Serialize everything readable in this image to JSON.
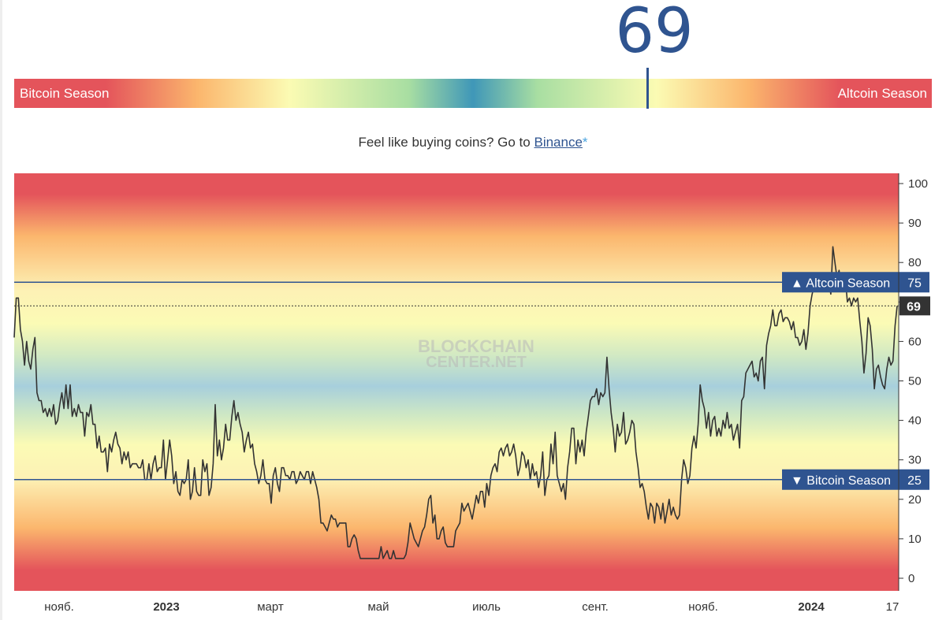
{
  "header": {
    "index_value": "69",
    "bar": {
      "left_label": "Bitcoin Season",
      "right_label": "Altcoin Season",
      "marker_value": 69
    },
    "buy_prompt": "Feel like buying coins? Go to",
    "buy_link": "Binance",
    "buy_star": "*"
  },
  "watermark": {
    "line1": "BLOCKCHAIN",
    "line2": "CENTER.NET"
  },
  "chart_data": {
    "type": "line",
    "ylim": [
      0,
      100
    ],
    "y_ticks": [
      0,
      10,
      20,
      30,
      40,
      50,
      60,
      70,
      80,
      90,
      100
    ],
    "x_ticks": [
      "нояб.",
      "2023",
      "март",
      "май",
      "июль",
      "сент.",
      "нояб.",
      "2024",
      "17"
    ],
    "thresholds": [
      {
        "label": "▲ Altcoin Season",
        "value_label": "75",
        "value": 75
      },
      {
        "label": "▼ Bitcoin Season",
        "value_label": "25",
        "value": 25
      }
    ],
    "current": {
      "label": "69",
      "value": 69
    },
    "series": [
      {
        "values": [
          61,
          71,
          71,
          63,
          60,
          54,
          60,
          55,
          53,
          58,
          61,
          47,
          45,
          45,
          42,
          43,
          41,
          43,
          41,
          44,
          39,
          40,
          44,
          47,
          43,
          49,
          43,
          49,
          41,
          43,
          41,
          44,
          42,
          42,
          36,
          42,
          41,
          44,
          39,
          39,
          33,
          36,
          32,
          32,
          33,
          27,
          34,
          32,
          35,
          37,
          34,
          33,
          29,
          32,
          30,
          32,
          28,
          29,
          29,
          29,
          28,
          28,
          30,
          25,
          25,
          29,
          25,
          29,
          31,
          27,
          28,
          28,
          35,
          25,
          30,
          35,
          31,
          24,
          27,
          22,
          21,
          25,
          24,
          25,
          30,
          20,
          22,
          28,
          22,
          21,
          21,
          30,
          27,
          29,
          21,
          23,
          29,
          44,
          31,
          35,
          30,
          33,
          39,
          35,
          35,
          41,
          45,
          40,
          42,
          39,
          37,
          32,
          35,
          37,
          33,
          34,
          29,
          27,
          24,
          26,
          30,
          25,
          24,
          24,
          19,
          26,
          28,
          24,
          22,
          28,
          28,
          26,
          26,
          25,
          27,
          27,
          24,
          25,
          27,
          26,
          25,
          27,
          27,
          24,
          27,
          25,
          23,
          20,
          14,
          14,
          13,
          12,
          14,
          16,
          15,
          15,
          13,
          14,
          14,
          14,
          14,
          8,
          8,
          10,
          11,
          10,
          7,
          5,
          5,
          5,
          5,
          5,
          5,
          5,
          5,
          5,
          5,
          8,
          5,
          6,
          7,
          5,
          5,
          7,
          5,
          5,
          5,
          5,
          5,
          6,
          9,
          14,
          12,
          10,
          9,
          8,
          10,
          12,
          13,
          16,
          20,
          21,
          14,
          16,
          10,
          10,
          12,
          13,
          9,
          8,
          8,
          8,
          8,
          12,
          13,
          14,
          19,
          17,
          18,
          19,
          17,
          15,
          18,
          21,
          19,
          22,
          22,
          18,
          24,
          21,
          26,
          28,
          29,
          27,
          32,
          33,
          31,
          33,
          34,
          31,
          32,
          34,
          31,
          26,
          28,
          32,
          31,
          28,
          30,
          25,
          29,
          26,
          27,
          23,
          26,
          32,
          21,
          25,
          26,
          34,
          29,
          37,
          26,
          24,
          22,
          24,
          20,
          28,
          32,
          38,
          38,
          29,
          35,
          32,
          35,
          31,
          37,
          41,
          45,
          46,
          46,
          48,
          44,
          47,
          46,
          47,
          56,
          48,
          42,
          38,
          32,
          39,
          36,
          37,
          42,
          34,
          35,
          37,
          40,
          39,
          32,
          28,
          23,
          24,
          22,
          18,
          15,
          19,
          18,
          14,
          19,
          18,
          15,
          19,
          14,
          17,
          20,
          16,
          18,
          16,
          15,
          16,
          25,
          30,
          28,
          24,
          26,
          33,
          36,
          33,
          39,
          49,
          45,
          43,
          38,
          42,
          36,
          40,
          41,
          36,
          38,
          36,
          40,
          38,
          42,
          38,
          39,
          35,
          37,
          39,
          33,
          45,
          46,
          52,
          53,
          54,
          55,
          51,
          52,
          50,
          55,
          56,
          48,
          59,
          62,
          64,
          68,
          64,
          64,
          67,
          68,
          65,
          66,
          66,
          65,
          63,
          65,
          61,
          61,
          59,
          60,
          63,
          58,
          62,
          69,
          72,
          74,
          77,
          75,
          74,
          73,
          76,
          74,
          75,
          72,
          84,
          80,
          76,
          78,
          73,
          76,
          76,
          70,
          71,
          69,
          71,
          70,
          71,
          65,
          60,
          52,
          57,
          66,
          64,
          58,
          48,
          53,
          54,
          51,
          49,
          48,
          53,
          56,
          54,
          55,
          64,
          69
        ]
      }
    ]
  }
}
